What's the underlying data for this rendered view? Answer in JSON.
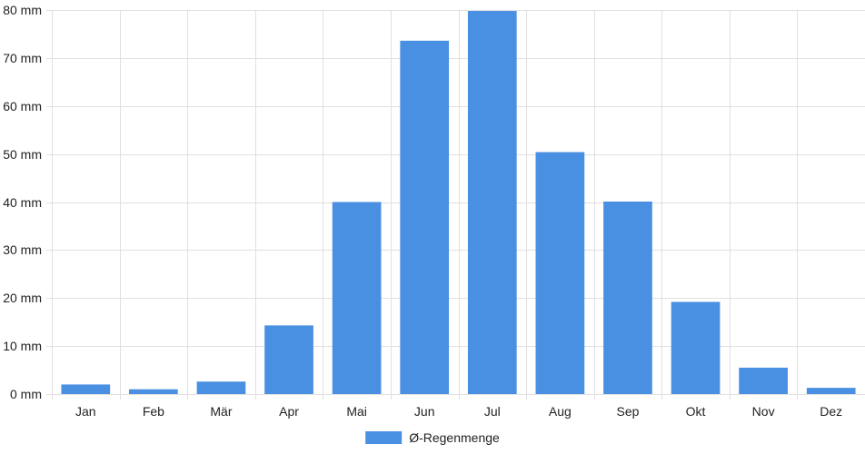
{
  "chart_data": {
    "type": "bar",
    "title": "",
    "xlabel": "",
    "ylabel": "",
    "categories": [
      "Jan",
      "Feb",
      "Mär",
      "Apr",
      "Mai",
      "Jun",
      "Jul",
      "Aug",
      "Sep",
      "Okt",
      "Nov",
      "Dez"
    ],
    "series": [
      {
        "name": "Ø-Regenmenge",
        "values": [
          2,
          1,
          2.6,
          14.3,
          40,
          73.6,
          79.8,
          50.4,
          40.1,
          19.2,
          5.5,
          1.3
        ]
      }
    ],
    "ylim": [
      0,
      80
    ],
    "yticks": [
      0,
      10,
      20,
      30,
      40,
      50,
      60,
      70,
      80
    ],
    "ytick_labels": [
      "0 mm",
      "10 mm",
      "20 mm",
      "30 mm",
      "40 mm",
      "50 mm",
      "60 mm",
      "70 mm",
      "80 mm"
    ],
    "grid": true,
    "legend_position": "bottom-center",
    "colors": {
      "bar": "#4a90e2",
      "grid": "#e0e0e0",
      "text": "#222222"
    }
  }
}
